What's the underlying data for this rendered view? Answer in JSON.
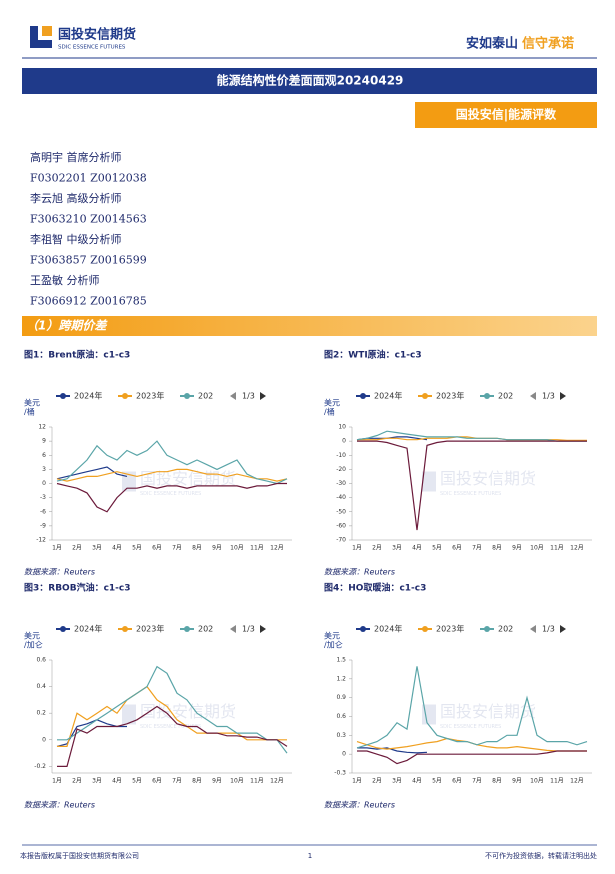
{
  "header": {
    "logo_cn": "国投安信期货",
    "logo_en": "SDIC ESSENCE FUTURES",
    "slogan_a": "安如泰山",
    "slogan_b": "信守承诺"
  },
  "title": "能源结构性价差面面观20240429",
  "tag": "国投安信|能源评数",
  "analysts": [
    {
      "name": "高明宇 首席分析师",
      "ids": "F0302201 Z0012038"
    },
    {
      "name": "李云旭 高级分析师",
      "ids": "F3063210 Z0014563"
    },
    {
      "name": "李祖智 中级分析师",
      "ids": "F3063857 Z0016599"
    },
    {
      "name": "王盈敏 分析师",
      "ids": "F3066912 Z0016785"
    }
  ],
  "section": "（1）跨期价差",
  "watermark": {
    "cn": "国投安信期货",
    "en": "SDIC ESSENCE FUTURES"
  },
  "chart_data": [
    {
      "type": "line",
      "title": "图1：Brent原油：c1-c3",
      "y_label": [
        "美元",
        "/桶"
      ],
      "pager": "1/3",
      "source": "数据来源：Reuters",
      "categories": [
        "1月",
        null,
        "2月",
        null,
        "3月",
        null,
        "4月",
        null,
        "5月",
        null,
        "6月",
        null,
        "7月",
        null,
        "8月",
        null,
        "9月",
        null,
        "10月",
        null,
        "11月",
        null,
        "12月",
        null
      ],
      "ylim": [
        -12,
        12
      ],
      "yticks": [
        12,
        9,
        6,
        3,
        0,
        -3,
        -6,
        -9,
        -12
      ],
      "series": [
        {
          "name": "2024年",
          "color": "#1f3a8a",
          "values": [
            1,
            1.5,
            2,
            2.5,
            3,
            3.5,
            2,
            1.5,
            null,
            null,
            null,
            null,
            null,
            null,
            null,
            null,
            null,
            null,
            null,
            null,
            null,
            null,
            null,
            null
          ]
        },
        {
          "name": "2023年",
          "color": "#f0a020",
          "values": [
            1,
            0.5,
            1,
            1.5,
            1.5,
            2,
            2.5,
            2,
            1.5,
            2,
            2.5,
            2.5,
            3,
            3,
            2.5,
            2,
            2,
            1.5,
            2,
            1.5,
            1,
            1,
            0.5,
            1
          ]
        },
        {
          "name": "202",
          "color": "#5aa5a8",
          "values": [
            0.5,
            1,
            3,
            5,
            8,
            6,
            5,
            7,
            6,
            7,
            9,
            6,
            5,
            4,
            5,
            4,
            3,
            4,
            5,
            2,
            1,
            0.5,
            0,
            1
          ]
        },
        {
          "color": "#6b1a3a",
          "values": [
            0,
            -0.5,
            -1,
            -2,
            -5,
            -6,
            -3,
            -1,
            -1,
            -0.5,
            -1,
            -0.5,
            -0.5,
            -1,
            -0.5,
            -0.5,
            -0.5,
            -0.5,
            -0.5,
            -1,
            -0.5,
            -0.5,
            0,
            0
          ]
        }
      ]
    },
    {
      "type": "line",
      "title": "图2：WTI原油：c1-c3",
      "y_label": [
        "美元",
        "/桶"
      ],
      "pager": "1/3",
      "source": "数据来源：Reuters",
      "categories": [
        "1月",
        null,
        "2月",
        null,
        "3月",
        null,
        "4月",
        null,
        "5月",
        null,
        "6月",
        null,
        "7月",
        null,
        "8月",
        null,
        "9月",
        null,
        "10月",
        null,
        "11月",
        null,
        "12月",
        null
      ],
      "ylim": [
        -70,
        10
      ],
      "yticks": [
        10,
        0,
        -10,
        -20,
        -30,
        -40,
        -50,
        -60,
        -70
      ],
      "series": [
        {
          "name": "2024年",
          "color": "#1f3a8a",
          "values": [
            1,
            2,
            2,
            2,
            3,
            3,
            2,
            1,
            null,
            null,
            null,
            null,
            null,
            null,
            null,
            null,
            null,
            null,
            null,
            null,
            null,
            null,
            null,
            null
          ]
        },
        {
          "name": "2023年",
          "color": "#f0a020",
          "values": [
            1,
            1,
            1,
            2,
            2,
            1,
            1,
            2,
            2,
            2,
            3,
            3,
            2,
            2,
            2,
            1,
            1,
            1,
            1,
            1,
            1,
            0.5,
            0.5,
            0.5
          ]
        },
        {
          "name": "202",
          "color": "#5aa5a8",
          "values": [
            1,
            2,
            4,
            7,
            6,
            5,
            4,
            3,
            3,
            3,
            3,
            2,
            2,
            2,
            2,
            1,
            1,
            1,
            1,
            1,
            0,
            0,
            0,
            0
          ]
        },
        {
          "color": "#6b1a3a",
          "values": [
            0,
            0,
            0,
            -1,
            -3,
            -5,
            -63,
            -3,
            -1,
            0,
            0,
            0,
            0,
            0,
            0,
            0,
            0,
            0,
            0,
            0,
            0,
            0,
            0,
            0
          ]
        }
      ]
    },
    {
      "type": "line",
      "title": "图3：RBOB汽油：c1-c3",
      "y_label": [
        "美元",
        "/加仑"
      ],
      "pager": "1/3",
      "source": "数据来源：Reuters",
      "categories": [
        "1月",
        null,
        "2月",
        null,
        "3月",
        null,
        "4月",
        null,
        "5月",
        null,
        "6月",
        null,
        "7月",
        null,
        "8月",
        null,
        "9月",
        null,
        "10月",
        null,
        "11月",
        null,
        "12月",
        null
      ],
      "ylim": [
        -0.25,
        0.6
      ],
      "yticks": [
        0.6,
        0.4,
        0.2,
        0,
        -0.2
      ],
      "series": [
        {
          "name": "2024年",
          "color": "#1f3a8a",
          "values": [
            -0.05,
            -0.03,
            0.1,
            0.12,
            0.15,
            0.12,
            0.1,
            0.1,
            null,
            null,
            null,
            null,
            null,
            null,
            null,
            null,
            null,
            null,
            null,
            null,
            null,
            null,
            null,
            null
          ]
        },
        {
          "name": "2023年",
          "color": "#f0a020",
          "values": [
            -0.05,
            -0.05,
            0.2,
            0.15,
            0.2,
            0.25,
            0.2,
            0.3,
            0.35,
            0.4,
            0.3,
            0.25,
            0.15,
            0.1,
            0.05,
            0.05,
            0.05,
            0.05,
            0.05,
            0,
            0,
            0,
            0,
            0
          ]
        },
        {
          "name": "202",
          "color": "#5aa5a8",
          "values": [
            0,
            0,
            0.05,
            0.1,
            0.15,
            0.2,
            0.25,
            0.3,
            0.35,
            0.4,
            0.55,
            0.5,
            0.35,
            0.3,
            0.2,
            0.15,
            0.1,
            0.1,
            0.05,
            0.05,
            0.05,
            0,
            0,
            -0.1
          ]
        },
        {
          "color": "#6b1a3a",
          "values": [
            -0.2,
            -0.2,
            0.08,
            0.05,
            0.1,
            0.1,
            0.1,
            0.12,
            0.15,
            0.2,
            0.25,
            0.2,
            0.12,
            0.1,
            0.1,
            0.05,
            0.05,
            0.03,
            0.03,
            0.02,
            0.02,
            0,
            0,
            -0.05
          ]
        }
      ]
    },
    {
      "type": "line",
      "title": "图4：HO取暖油：c1-c3",
      "y_label": [
        "美元",
        "/加仑"
      ],
      "pager": "1/3",
      "source": "数据来源：Reuters",
      "categories": [
        "1月",
        null,
        "2月",
        null,
        "3月",
        null,
        "4月",
        null,
        "5月",
        null,
        "6月",
        null,
        "7月",
        null,
        "8月",
        null,
        "9月",
        null,
        "10月",
        null,
        "11月",
        null,
        "12月",
        null
      ],
      "ylim": [
        -0.3,
        1.5
      ],
      "yticks": [
        1.5,
        1.2,
        0.9,
        0.6,
        0.3,
        0,
        -0.3
      ],
      "series": [
        {
          "name": "2024年",
          "color": "#1f3a8a",
          "values": [
            0.1,
            0.1,
            0.08,
            0.1,
            0.05,
            0.03,
            0.02,
            0.03,
            null,
            null,
            null,
            null,
            null,
            null,
            null,
            null,
            null,
            null,
            null,
            null,
            null,
            null,
            null,
            null
          ]
        },
        {
          "name": "2023年",
          "color": "#f0a020",
          "values": [
            0.2,
            0.15,
            0.1,
            0.08,
            0.1,
            0.12,
            0.15,
            0.18,
            0.2,
            0.25,
            0.22,
            0.2,
            0.15,
            0.12,
            0.1,
            0.1,
            0.12,
            0.1,
            0.08,
            0.06,
            0.05,
            0.05,
            0.05,
            0.05
          ]
        },
        {
          "name": "202",
          "color": "#5aa5a8",
          "values": [
            0.1,
            0.15,
            0.2,
            0.3,
            0.5,
            0.4,
            1.4,
            0.5,
            0.3,
            0.25,
            0.2,
            0.2,
            0.15,
            0.2,
            0.2,
            0.3,
            0.3,
            0.9,
            0.3,
            0.2,
            0.2,
            0.2,
            0.15,
            0.2
          ]
        },
        {
          "color": "#6b1a3a",
          "values": [
            0.05,
            0.05,
            0,
            -0.05,
            -0.15,
            -0.1,
            0,
            0,
            0,
            0,
            0,
            0,
            0,
            0,
            0,
            0,
            0,
            0,
            0,
            0.02,
            0.05,
            0.05,
            0.05,
            0.05
          ]
        }
      ]
    }
  ],
  "footer": {
    "left": "本报告版权属于国投安信期货有限公司",
    "page": "1",
    "right": "不可作为投资依据，转载请注明出处"
  }
}
